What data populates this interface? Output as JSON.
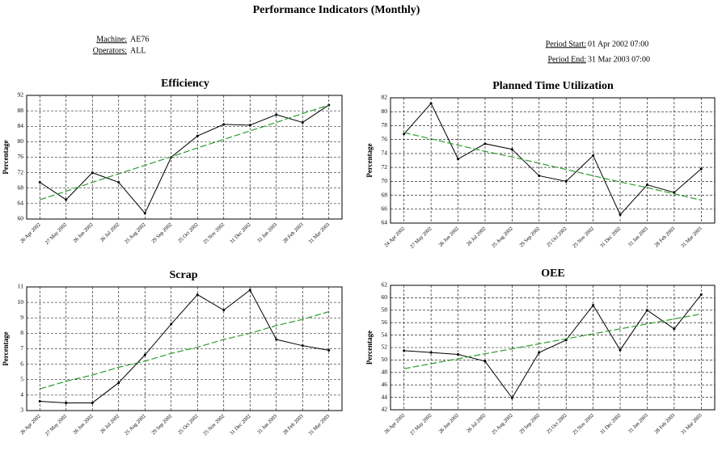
{
  "header": {
    "title": "Performance Indicators (Monthly)",
    "machine_label": "Machine:",
    "machine": "AE76",
    "operators_label": "Operators:",
    "operators": "ALL",
    "period_start_label": "Period Start:",
    "period_start": "01 Apr 2002 07:00",
    "period_end_label": "Period End:",
    "period_end": "31 Mar 2003 07:00"
  },
  "chart_data": [
    {
      "type": "line",
      "title": "Efficiency",
      "ylabel": "Percentage",
      "categories": [
        "26 Apr 2002",
        "27 May 2002",
        "26 Jun 2002",
        "26 Jul 2002",
        "25 Aug 2002",
        "29 Sep 2002",
        "25 Oct 2002",
        "25 Nov 2002",
        "31 Dec 2002",
        "31 Jan 2003",
        "28 Feb 2003",
        "31 Mar 2003"
      ],
      "series": [
        {
          "color": "#000000",
          "values": [
            69.5,
            65,
            72,
            69.5,
            61.5,
            76,
            81.5,
            84.5,
            84.3,
            87,
            85,
            89.5
          ]
        },
        {
          "color": "#2e9b2e",
          "dashed": true,
          "values": [
            65,
            67.2,
            69.5,
            71.7,
            73.9,
            76.1,
            78.4,
            80.6,
            82.8,
            85,
            87.3,
            89.5
          ]
        }
      ],
      "ylim": [
        60,
        92
      ],
      "yticks": [
        60,
        64,
        68,
        72,
        76,
        80,
        84,
        88,
        92
      ],
      "grid": true
    },
    {
      "type": "line",
      "title": "Planned Time Utilization",
      "ylabel": "Percentage",
      "categories": [
        "24 Apr 2002",
        "27 May 2002",
        "26 Jun 2002",
        "26 Jul 2002",
        "25 Aug 2002",
        "29 Sep 2002",
        "25 Oct 2002",
        "25 Nov 2002",
        "31 Dec 2002",
        "31 Jan 2003",
        "28 Feb 2003",
        "31 Mar 2003"
      ],
      "series": [
        {
          "color": "#000000",
          "values": [
            76.8,
            81.2,
            73.2,
            75.4,
            74.6,
            70.8,
            70,
            73.7,
            65.2,
            69.5,
            68.4,
            71.8
          ]
        },
        {
          "color": "#2e9b2e",
          "dashed": true,
          "values": [
            77,
            76.1,
            75.2,
            74.3,
            73.5,
            72.6,
            71.7,
            70.8,
            69.9,
            69.1,
            68.2,
            67.3
          ]
        }
      ],
      "ylim": [
        64,
        82
      ],
      "yticks": [
        64,
        66,
        68,
        70,
        72,
        74,
        76,
        78,
        80,
        82
      ],
      "grid": true
    },
    {
      "type": "line",
      "title": "Scrap",
      "ylabel": "Percentage",
      "categories": [
        "26 Apr 2002",
        "27 May 2002",
        "26 Jun 2002",
        "26 Jul 2002",
        "25 Aug 2002",
        "29 Sep 2002",
        "25 Oct 2002",
        "25 Nov 2002",
        "31 Dec 2002",
        "31 Jan 2003",
        "28 Feb 2003",
        "31 Mar 2003"
      ],
      "series": [
        {
          "color": "#000000",
          "values": [
            3.6,
            3.5,
            3.5,
            4.8,
            6.6,
            8.6,
            10.5,
            9.5,
            10.8,
            7.6,
            7.2,
            6.9
          ]
        },
        {
          "color": "#2e9b2e",
          "dashed": true,
          "values": [
            4.4,
            4.9,
            5.3,
            5.8,
            6.2,
            6.7,
            7.1,
            7.6,
            8,
            8.5,
            8.9,
            9.4
          ]
        }
      ],
      "ylim": [
        3,
        11
      ],
      "yticks": [
        3,
        4,
        5,
        6,
        7,
        8,
        9,
        10,
        11
      ],
      "grid": true
    },
    {
      "type": "line",
      "title": "OEE",
      "ylabel": "Percentage",
      "categories": [
        "26 Apr 2002",
        "27 May 2002",
        "26 Jun 2002",
        "26 Jul 2002",
        "25 Aug 2002",
        "29 Sep 2002",
        "25 Oct 2002",
        "25 Nov 2002",
        "31 Dec 2002",
        "31 Jan 2003",
        "28 Feb 2003",
        "31 Mar 2003"
      ],
      "series": [
        {
          "color": "#000000",
          "values": [
            51.5,
            51.2,
            50.9,
            49.8,
            43.9,
            51.2,
            53.2,
            58.8,
            51.6,
            58,
            55,
            60.5
          ]
        },
        {
          "color": "#2e9b2e",
          "dashed": true,
          "values": [
            48.6,
            49.4,
            50.2,
            51,
            51.8,
            52.6,
            53.4,
            54.2,
            55,
            55.8,
            56.6,
            57.4
          ]
        }
      ],
      "ylim": [
        42,
        62
      ],
      "yticks": [
        42,
        44,
        46,
        48,
        50,
        52,
        54,
        56,
        58,
        60,
        62
      ],
      "grid": true
    }
  ]
}
